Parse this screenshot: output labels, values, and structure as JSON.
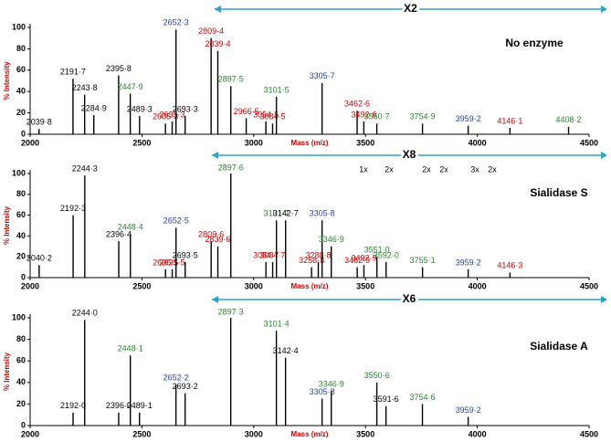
{
  "chart_data": [
    {
      "type": "spectrum",
      "title": "No enzyme",
      "x_label": "Mass (m/z)",
      "y_label": "% Intensity",
      "xlim": [
        2000,
        4500
      ],
      "ylim": [
        0,
        100
      ],
      "xticks": [
        2000,
        2500,
        3000,
        3500,
        4000,
        4500
      ],
      "yticks": [
        0,
        20,
        40,
        60,
        80,
        100
      ],
      "zoom_label": "X2",
      "zoom_from": 2825,
      "color": "#000000",
      "x": [
        2039.8,
        2191.7,
        2243.8,
        2284.9,
        2395.8,
        2447.9,
        2489.3,
        2605.3,
        2635.3,
        2652.3,
        2693.3,
        2809.4,
        2839.4,
        2897.5,
        2966.5,
        3054.5,
        3084.5,
        3101.5,
        3305.7,
        3462.6,
        3492.6,
        3550.7,
        3754.9,
        3959.2,
        4146.1,
        4408.2
      ],
      "x_labels": [
        "2039·8",
        "2191·7",
        "2243·8",
        "2284·9",
        "2395·8",
        "2447·9",
        "2489·3",
        "2605·3",
        "2635·3",
        "2652·3",
        "2693·3",
        "2809·4",
        "2839·4",
        "2897·5",
        "2966·5",
        "3054·5",
        "3084·5",
        "3101·5",
        "3305·7",
        "3462·6",
        "3492·6",
        "3550·7",
        "3754·9",
        "3959·2",
        "4146·1",
        "4408·2"
      ],
      "values": [
        5,
        52,
        37,
        18,
        55,
        38,
        17,
        10,
        12,
        98,
        17,
        90,
        78,
        45,
        15,
        12,
        10,
        35,
        48,
        22,
        12,
        10,
        10,
        8,
        6,
        7
      ],
      "label_colors": [
        "#000000",
        "#000000",
        "#000000",
        "#000000",
        "#000000",
        "#2e7d32",
        "#000000",
        "#d00000",
        "#d00000",
        "#2a3f9a",
        "#000000",
        "#d00000",
        "#d00000",
        "#2e7d32",
        "#d00000",
        "#d00000",
        "#d00000",
        "#2e7d32",
        "#2a3f9a",
        "#d00000",
        "#d00000",
        "#2e7d32",
        "#2e7d32",
        "#2a3f9a",
        "#d00000",
        "#2e7d32"
      ]
    },
    {
      "type": "spectrum",
      "title": "Sialidase S",
      "x_label": "Mass (m/z)",
      "y_label": "% Intensity",
      "xlim": [
        2000,
        4500
      ],
      "ylim": [
        0,
        100
      ],
      "xticks": [
        2000,
        2500,
        3000,
        3500,
        4000,
        4500
      ],
      "yticks": [
        0,
        20,
        40,
        60,
        80,
        100
      ],
      "zoom_label": "X8",
      "zoom_from": 2813,
      "color": "#000000",
      "glycan_notes": [
        "1x",
        "2x",
        "2x",
        "2x",
        "3x",
        "2x"
      ],
      "x": [
        2040.2,
        2192.3,
        2244.3,
        2396.4,
        2448.4,
        2605.5,
        2635.5,
        2652.5,
        2693.5,
        2809.6,
        2839.6,
        2897.6,
        3054.7,
        3084.7,
        3101.7,
        3142.7,
        3258.8,
        3288.8,
        3305.8,
        3346.9,
        3462.9,
        3492.9,
        3551.0,
        3592.0,
        3755.1,
        3959.2,
        4146.3
      ],
      "x_labels": [
        "2040·2",
        "2192·3",
        "2244·3",
        "2396·4",
        "2448·4",
        "2605·5",
        "2635·5",
        "2652·5",
        "2693·5",
        "2809·6",
        "2839·6",
        "2897·6",
        "3054·7",
        "3084·7",
        "3101·7",
        "3142·7",
        "3258·8",
        "3288·8",
        "3305·8",
        "3346·9",
        "3462·9",
        "3492·9",
        "3551·0",
        "3592·0",
        "3755·1",
        "3959·2",
        "4146·3"
      ],
      "values": [
        12,
        60,
        98,
        35,
        42,
        8,
        8,
        48,
        15,
        35,
        30,
        100,
        15,
        15,
        55,
        55,
        10,
        15,
        55,
        30,
        10,
        12,
        20,
        15,
        10,
        8,
        5
      ],
      "label_colors": [
        "#000000",
        "#000000",
        "#000000",
        "#000000",
        "#2e7d32",
        "#d00000",
        "#d00000",
        "#2a3f9a",
        "#000000",
        "#d00000",
        "#d00000",
        "#2e7d32",
        "#d00000",
        "#d00000",
        "#2e7d32",
        "#000000",
        "#d00000",
        "#d00000",
        "#2a3f9a",
        "#2e7d32",
        "#d00000",
        "#d00000",
        "#2e7d32",
        "#2e7d32",
        "#2e7d32",
        "#2a3f9a",
        "#d00000"
      ]
    },
    {
      "type": "spectrum",
      "title": "Sialidase A",
      "x_label": "Mass (m/z)",
      "y_label": "% Intensity",
      "xlim": [
        2000,
        4500
      ],
      "ylim": [
        0,
        100
      ],
      "xticks": [
        2000,
        2500,
        3000,
        3500,
        4000,
        4500
      ],
      "yticks": [
        0,
        20,
        40,
        60,
        80,
        100
      ],
      "zoom_label": "X6",
      "zoom_from": 2813,
      "color": "#000000",
      "x": [
        2192.0,
        2244.0,
        2396.0,
        2448.1,
        2489.1,
        2652.2,
        2693.2,
        2897.3,
        3101.4,
        3142.4,
        3305.8,
        3346.9,
        3550.6,
        3591.6,
        3754.6,
        3959.2
      ],
      "x_labels": [
        "2192·0",
        "2244·0",
        "2396·0",
        "2448·1",
        "2489·1",
        "2652·2",
        "2693·2",
        "2897·3",
        "3101·4",
        "3142·4",
        "3305·8",
        "3346·9",
        "3550·6",
        "3591·6",
        "3754·6",
        "3959·2"
      ],
      "values": [
        12,
        98,
        12,
        65,
        12,
        38,
        30,
        100,
        88,
        63,
        25,
        32,
        40,
        18,
        20,
        8
      ],
      "label_colors": [
        "#000000",
        "#000000",
        "#000000",
        "#2e7d32",
        "#000000",
        "#2a3f9a",
        "#000000",
        "#2e7d32",
        "#2e7d32",
        "#000000",
        "#2a3f9a",
        "#2e7d32",
        "#2e7d32",
        "#000000",
        "#2e7d32",
        "#2a3f9a"
      ]
    }
  ]
}
